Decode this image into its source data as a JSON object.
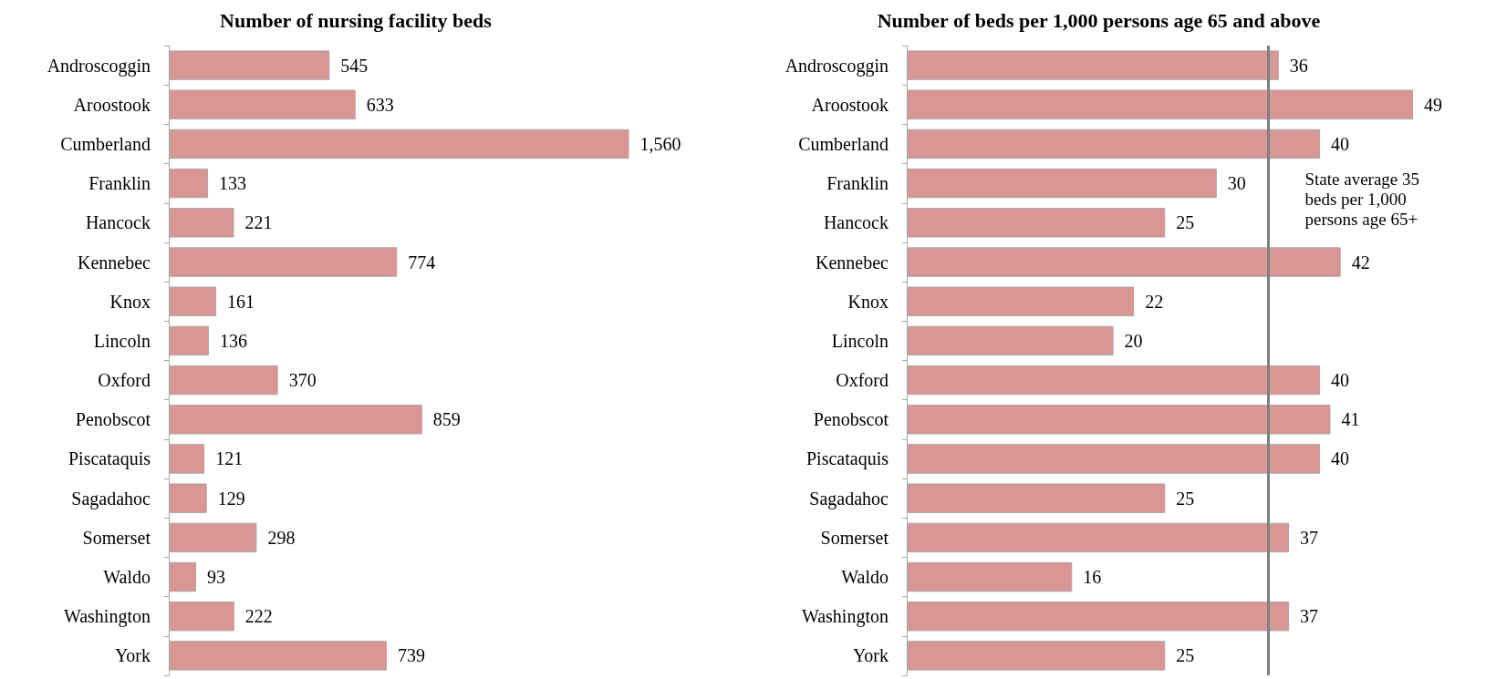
{
  "chart_data": [
    {
      "type": "bar",
      "orientation": "horizontal",
      "title": "Number of nursing facility beds",
      "categories": [
        "Androscoggin",
        "Aroostook",
        "Cumberland",
        "Franklin",
        "Hancock",
        "Kennebec",
        "Knox",
        "Lincoln",
        "Oxford",
        "Penobscot",
        "Piscataquis",
        "Sagadahoc",
        "Somerset",
        "Waldo",
        "Washington",
        "York"
      ],
      "values": [
        545,
        633,
        1560,
        133,
        221,
        774,
        161,
        136,
        370,
        859,
        121,
        129,
        298,
        93,
        222,
        739
      ],
      "value_labels": [
        "545",
        "633",
        "1,560",
        "133",
        "221",
        "774",
        "161",
        "136",
        "370",
        "859",
        "121",
        "129",
        "298",
        "93",
        "222",
        "739"
      ],
      "color": "#d99694"
    },
    {
      "type": "bar",
      "orientation": "horizontal",
      "title": "Number of beds per 1,000 persons age 65 and above",
      "categories": [
        "Androscoggin",
        "Aroostook",
        "Cumberland",
        "Franklin",
        "Hancock",
        "Kennebec",
        "Knox",
        "Lincoln",
        "Oxford",
        "Penobscot",
        "Piscataquis",
        "Sagadahoc",
        "Somerset",
        "Waldo",
        "Washington",
        "York"
      ],
      "values": [
        36,
        49,
        40,
        30,
        25,
        42,
        22,
        20,
        40,
        41,
        40,
        25,
        37,
        16,
        37,
        25
      ],
      "data_labels": true,
      "color": "#d99694",
      "ref_lines": [
        {
          "axis": "x",
          "value": 35,
          "label": "State average 35 beds per 1,000 persons age 65+",
          "color": "#7f7f7f"
        }
      ]
    }
  ]
}
